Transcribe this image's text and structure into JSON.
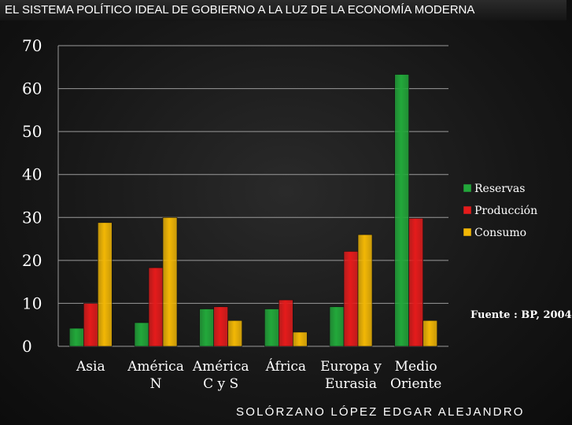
{
  "header": {
    "title": "EL SISTEMA POLÍTICO IDEAL DE GOBIERNO A LA LUZ DE LA ECONOMÍA MODERNA"
  },
  "source_note": "Fuente : BP, 2004",
  "author": "SOLÓRZANO LÓPEZ EDGAR ALEJANDRO",
  "colors": {
    "reservas": "#22a83a",
    "produccion": "#e51b1b",
    "consumo": "#f2b705",
    "axis": "#9a9a9a"
  },
  "chart_data": {
    "type": "bar",
    "categories": [
      [
        "Asia"
      ],
      [
        "América",
        "N"
      ],
      [
        "América",
        "C y S"
      ],
      [
        "África"
      ],
      [
        "Europa y",
        "Eurasia"
      ],
      [
        "Medio",
        "Oriente"
      ]
    ],
    "series": [
      {
        "name": "Reservas",
        "color": "#22a83a",
        "values": [
          4.2,
          5.5,
          8.7,
          8.7,
          9.2,
          63.3
        ]
      },
      {
        "name": "Producción",
        "color": "#e51b1b",
        "values": [
          10,
          18.3,
          9.2,
          10.8,
          22.1,
          29.8
        ]
      },
      {
        "name": "Consumo",
        "color": "#f2b705",
        "values": [
          28.8,
          30,
          6,
          3.3,
          26,
          6
        ]
      }
    ],
    "y_ticks": [
      "0",
      "10",
      "20",
      "30",
      "40",
      "50",
      "60",
      "70"
    ],
    "ylim": [
      0,
      70
    ],
    "grid": true,
    "legend_position": "right"
  }
}
